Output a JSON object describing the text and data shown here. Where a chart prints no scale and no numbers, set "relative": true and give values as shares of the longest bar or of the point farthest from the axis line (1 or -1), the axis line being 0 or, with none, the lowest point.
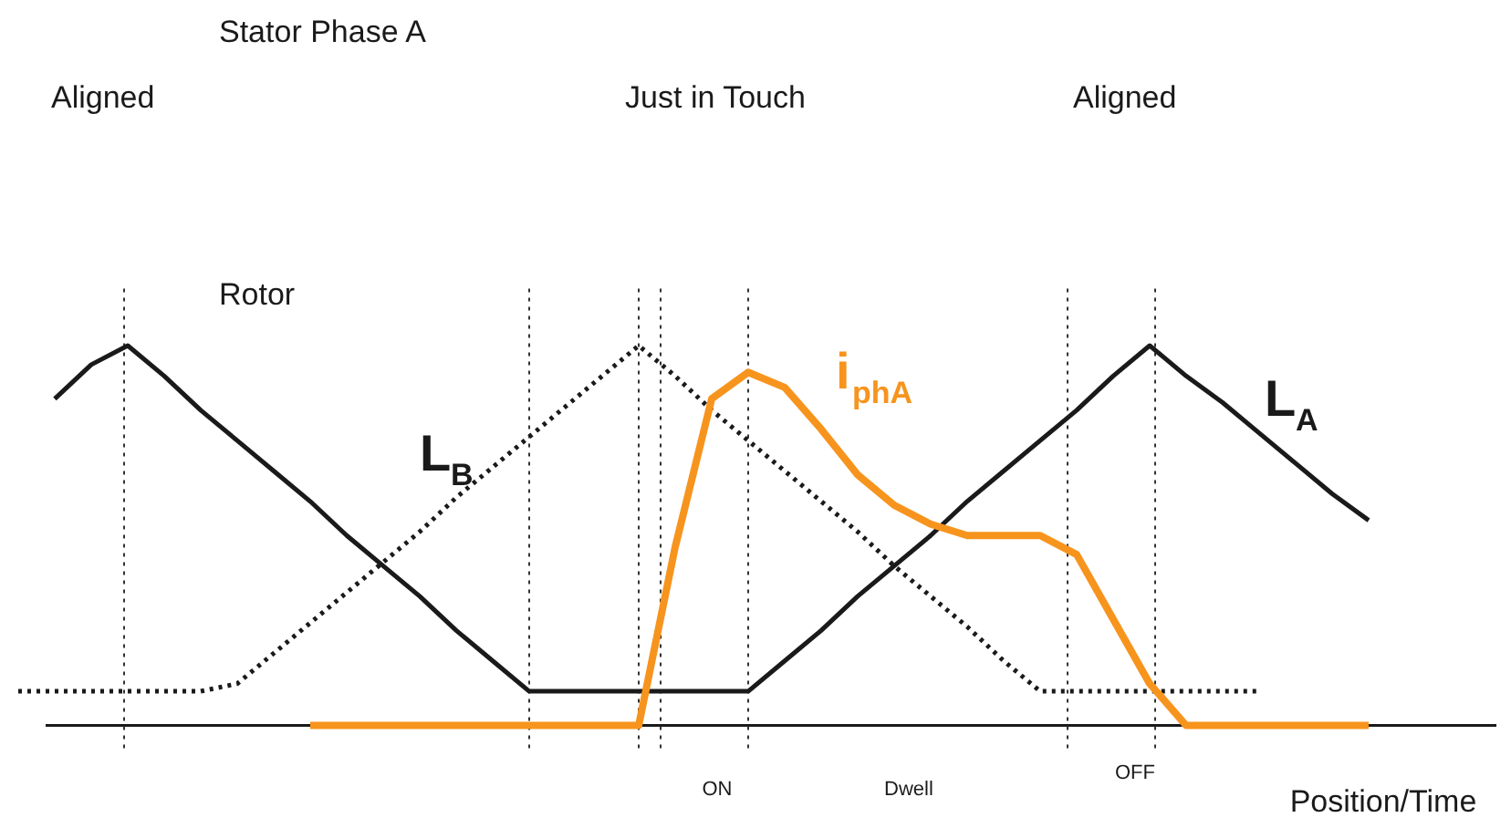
{
  "chart_data": {
    "type": "line",
    "relative": true,
    "legend": false,
    "marker": "none",
    "grid": "x",
    "categories": [
      null,
      null,
      null,
      null,
      null,
      null,
      null,
      null,
      null,
      null,
      null,
      null,
      null,
      null,
      null,
      null,
      null,
      null,
      null,
      null,
      null,
      null,
      null,
      null,
      null,
      null,
      null,
      null,
      null,
      null,
      null,
      null,
      null,
      null,
      null,
      null,
      null,
      null,
      null
    ],
    "series": [
      {
        "name": "L$_{A}$",
        "color": "#1a1a1a",
        "line_style": "solid",
        "values": [
          null,
          0.86,
          0.95,
          1.0,
          0.92,
          0.83,
          0.75,
          0.67,
          0.59,
          0.5,
          0.42,
          0.34,
          0.25,
          0.17,
          0.09,
          0.09,
          0.09,
          0.09,
          0.09,
          0.09,
          0.09,
          0.17,
          0.25,
          0.34,
          0.42,
          0.5,
          0.59,
          0.67,
          0.75,
          0.83,
          0.92,
          1.0,
          0.92,
          0.85,
          0.77,
          0.69,
          0.61,
          0.54,
          null
        ]
      },
      {
        "name": "L$_{B}$",
        "color": "#1a1a1a",
        "line_style": "dotted",
        "values": [
          0.09,
          0.09,
          0.09,
          0.09,
          0.09,
          0.09,
          0.11,
          0.19,
          0.27,
          0.35,
          0.43,
          0.51,
          0.6,
          0.68,
          0.76,
          0.84,
          0.92,
          1.0,
          0.92,
          0.83,
          0.75,
          0.67,
          0.59,
          0.51,
          0.42,
          0.34,
          0.26,
          0.17,
          0.09,
          0.09,
          0.09,
          0.09,
          0.09,
          0.09,
          0.09,
          null,
          null,
          null,
          null
        ]
      },
      {
        "name": "i$_{phA}$",
        "color": "#f7941d",
        "line_style": "solid",
        "values": [
          null,
          null,
          null,
          null,
          null,
          null,
          null,
          null,
          0,
          0,
          0,
          0,
          0,
          0,
          0,
          0,
          0,
          0,
          0.47,
          0.86,
          0.93,
          0.89,
          0.78,
          0.66,
          0.58,
          0.53,
          0.5,
          0.5,
          0.5,
          0.45,
          0.28,
          0.11,
          0,
          0,
          0,
          0,
          0,
          0,
          null
        ]
      }
    ],
    "annotations": [
      "Stator Phase A",
      "Aligned",
      "Rotor",
      "Just in Touch",
      "Aligned",
      "ON",
      "Dwell",
      "OFF",
      "Position/Time"
    ]
  }
}
